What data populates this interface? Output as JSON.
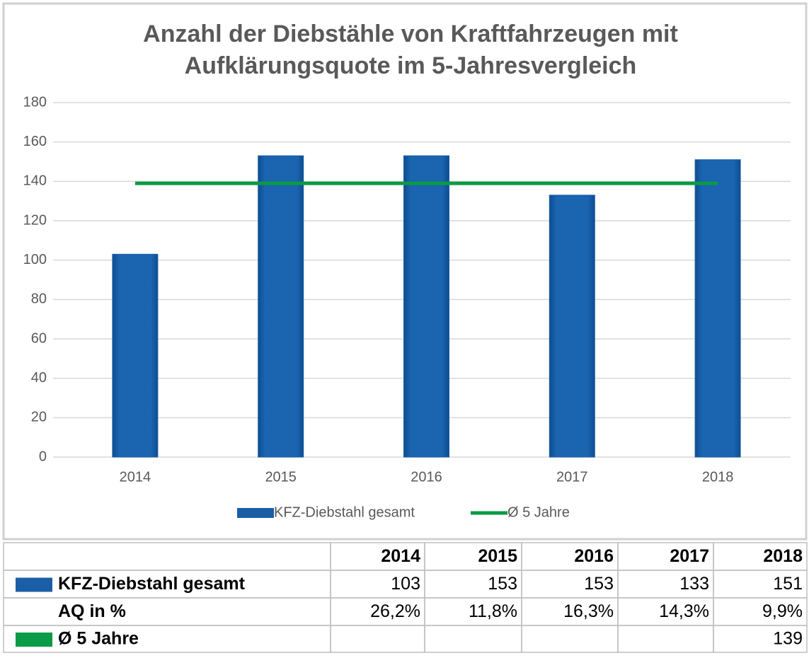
{
  "chart_data": {
    "type": "bar",
    "title": [
      "Anzahl der Diebstähle von Kraftfahrzeugen mit",
      "Aufklärungsquote im 5-Jahresvergleich"
    ],
    "categories": [
      "2014",
      "2015",
      "2016",
      "2017",
      "2018"
    ],
    "series": [
      {
        "name": "KFZ-Diebstahl gesamt",
        "type": "bar",
        "color": "#1a5ea6",
        "values": [
          103,
          153,
          153,
          133,
          151
        ]
      },
      {
        "name": "Ø 5 Jahre",
        "type": "line",
        "color": "#0b9a45",
        "values": [
          139,
          139,
          139,
          139,
          139
        ]
      }
    ],
    "ylim": [
      0,
      180
    ],
    "yticks": [
      0,
      20,
      40,
      60,
      80,
      100,
      120,
      140,
      160,
      180
    ],
    "grid": true,
    "legend": "bottom"
  },
  "table": {
    "rows": [
      {
        "name": "AQ in %",
        "values": [
          26.2,
          11.8,
          16.3,
          14.3,
          9.9
        ],
        "value_labels": [
          "26,2%",
          "11,8%",
          "16,3%",
          "14,3%",
          "9,9%"
        ]
      }
    ]
  }
}
